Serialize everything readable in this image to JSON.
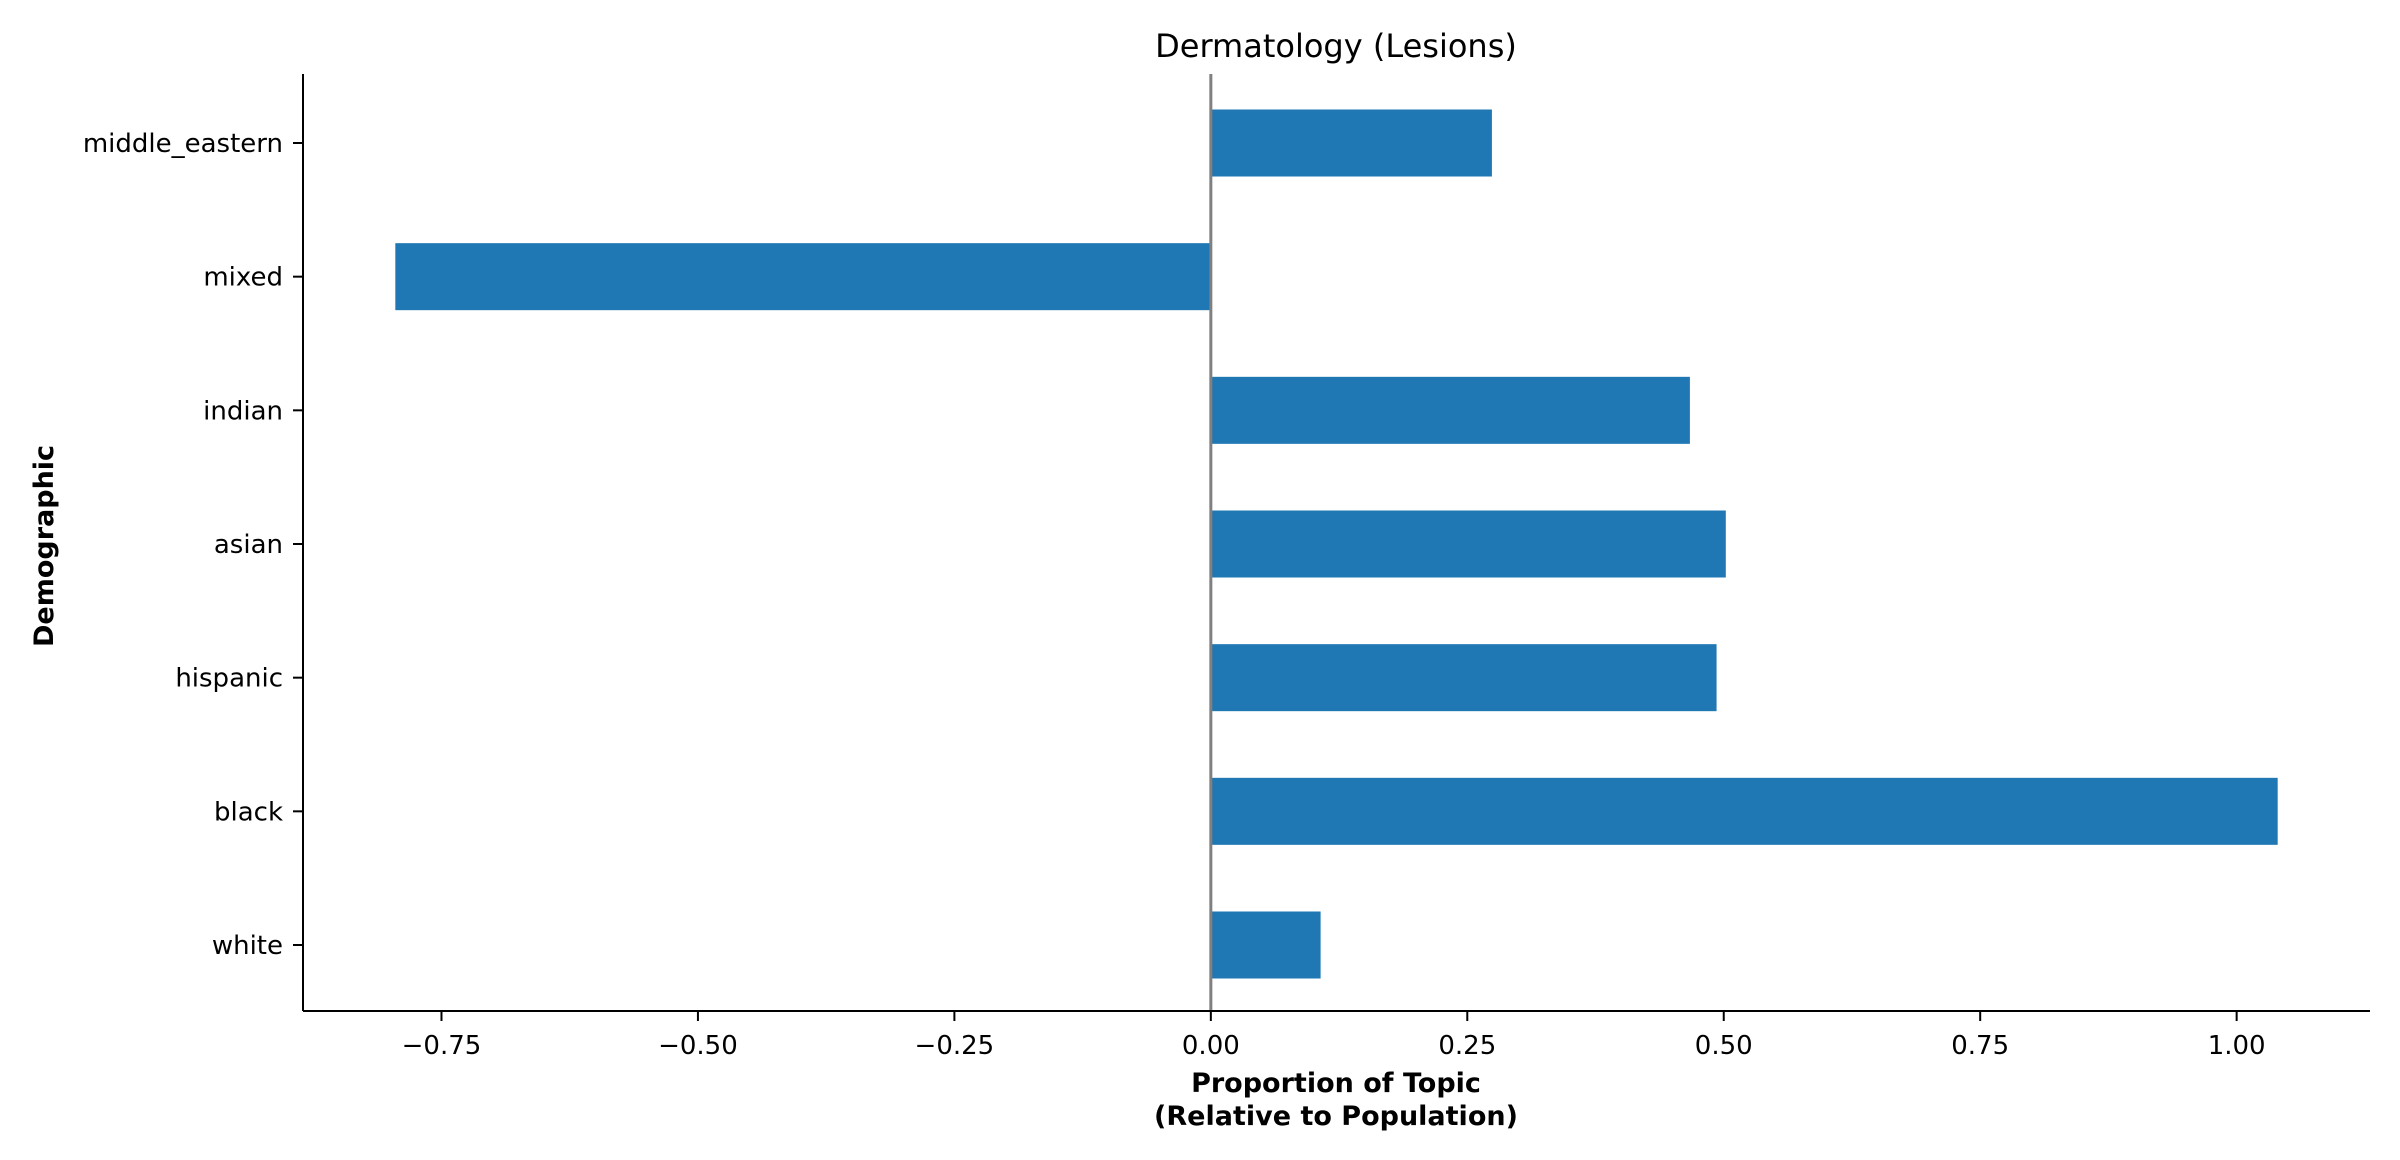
{
  "chart_data": {
    "type": "bar",
    "orientation": "horizontal",
    "title": "Dermatology (Lesions)",
    "xlabel_lines": [
      "Proportion of Topic",
      "(Relative to Population)"
    ],
    "ylabel": "Demographic",
    "categories": [
      "white",
      "black",
      "hispanic",
      "asian",
      "indian",
      "mixed",
      "middle_eastern"
    ],
    "values": [
      0.107,
      1.04,
      0.493,
      0.502,
      0.467,
      -0.795,
      0.274
    ],
    "xlim": [
      -0.885,
      1.13
    ],
    "xticks": [
      -0.75,
      -0.5,
      -0.25,
      0.0,
      0.25,
      0.5,
      0.75,
      1.0
    ],
    "xtick_labels": [
      "−0.75",
      "−0.50",
      "−0.25",
      "0.00",
      "0.25",
      "0.50",
      "0.75",
      "1.00"
    ],
    "bar_color": "#1f77b4",
    "zero_line_color": "#808080",
    "grid": false,
    "legend": "none"
  }
}
